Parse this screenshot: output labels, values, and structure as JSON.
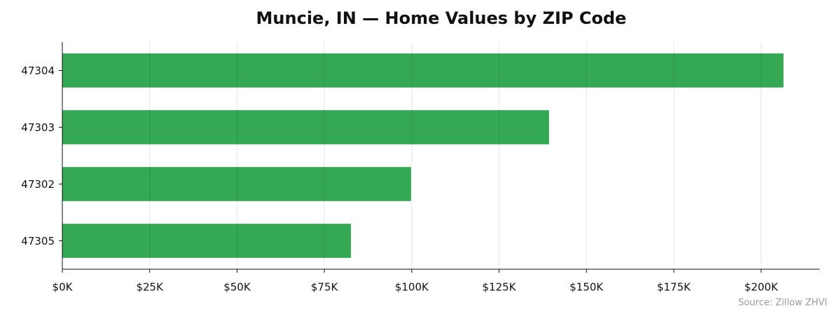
{
  "chart_data": {
    "type": "barh",
    "title": "Muncie, IN — Home Values by ZIP Code",
    "categories": [
      "47304",
      "47303",
      "47302",
      "47305"
    ],
    "values": [
      206400,
      139300,
      99800,
      82600
    ],
    "color": "#34a853",
    "xlim": [
      0,
      216700
    ],
    "xticks": [
      {
        "value": 0,
        "label": "$0K"
      },
      {
        "value": 25000,
        "label": "$25K"
      },
      {
        "value": 50000,
        "label": "$50K"
      },
      {
        "value": 75000,
        "label": "$75K"
      },
      {
        "value": 100000,
        "label": "$100K"
      },
      {
        "value": 125000,
        "label": "$125K"
      },
      {
        "value": 150000,
        "label": "$150K"
      },
      {
        "value": 175000,
        "label": "$175K"
      },
      {
        "value": 200000,
        "label": "$200K"
      }
    ],
    "grid": true,
    "annotation": "Source: Zillow ZHVI"
  }
}
